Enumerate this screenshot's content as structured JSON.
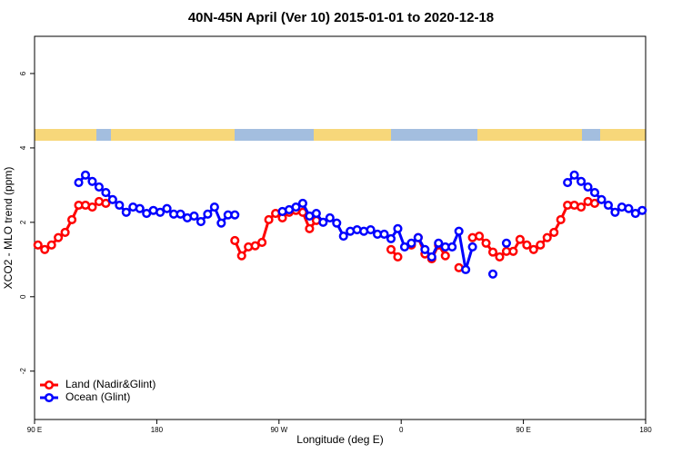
{
  "chart_data": {
    "type": "line",
    "title": "40N-45N April (Ver 10)   2015-01-01 to 2020-12-18",
    "x_label": "Longitude (deg E)",
    "y_label": "XCO2 - MLO trend (ppm)",
    "x": [
      92.5,
      97.5,
      102.5,
      107.5,
      112.5,
      117.5,
      122.5,
      127.5,
      132.5,
      137.5,
      142.5,
      147.5,
      152.5,
      157.5,
      162.5,
      167.5,
      172.5,
      177.5,
      182.5,
      187.5,
      192.5,
      197.5,
      202.5,
      207.5,
      212.5,
      217.5,
      222.5,
      227.5,
      232.5,
      237.5,
      242.5,
      247.5,
      252.5,
      257.5,
      262.5,
      267.5,
      272.5,
      277.5,
      282.5,
      287.5,
      292.5,
      297.5,
      302.5,
      307.5,
      312.5,
      317.5,
      322.5,
      327.5,
      332.5,
      337.5,
      342.5,
      347.5,
      352.5,
      357.5,
      362.5,
      367.5,
      372.5,
      377.5,
      382.5,
      387.5,
      392.5,
      397.5,
      402.5,
      407.5,
      412.5,
      417.5,
      422.5,
      427.5,
      432.5,
      437.5,
      442.5,
      447.5,
      452.5,
      457.5,
      462.5,
      467.5,
      472.5,
      477.5,
      482.5,
      487.5,
      492.5,
      497.5,
      502.5,
      507.5,
      512.5,
      517.5,
      522.5,
      527.5,
      532.5,
      537.5
    ],
    "series": [
      {
        "name": "Land (Nadir&Glint)",
        "color": "#ff0000",
        "values": [
          1.39,
          1.27,
          1.39,
          1.59,
          1.73,
          2.07,
          2.46,
          2.46,
          2.41,
          2.56,
          2.51,
          null,
          null,
          null,
          null,
          null,
          null,
          null,
          null,
          null,
          null,
          null,
          null,
          null,
          null,
          null,
          null,
          null,
          null,
          1.51,
          1.1,
          1.34,
          1.37,
          1.46,
          2.07,
          2.24,
          2.12,
          2.27,
          2.32,
          2.27,
          1.83,
          2.05,
          null,
          null,
          null,
          null,
          null,
          null,
          null,
          null,
          null,
          null,
          1.27,
          1.07,
          null,
          1.39,
          1.59,
          1.15,
          1.02,
          1.39,
          1.1,
          null,
          0.78,
          null,
          1.59,
          1.63,
          1.44,
          1.2,
          1.07,
          1.22,
          1.22,
          1.54,
          1.39,
          1.27,
          1.39,
          1.59,
          1.73,
          2.07,
          2.46,
          2.46,
          2.41,
          2.56,
          2.51,
          null,
          null,
          null,
          null,
          null,
          null,
          null
        ]
      },
      {
        "name": "Ocean (Glint)",
        "color": "#0000ff",
        "values": [
          null,
          null,
          null,
          null,
          null,
          null,
          3.07,
          3.27,
          3.1,
          2.95,
          2.8,
          2.61,
          2.46,
          2.27,
          2.41,
          2.37,
          2.24,
          2.32,
          2.27,
          2.37,
          2.22,
          2.22,
          2.12,
          2.17,
          2.02,
          2.22,
          2.41,
          1.98,
          2.2,
          2.2,
          null,
          null,
          null,
          null,
          null,
          null,
          2.29,
          2.34,
          2.41,
          2.51,
          2.17,
          2.24,
          2.0,
          2.12,
          1.98,
          1.63,
          1.76,
          1.8,
          1.76,
          1.8,
          1.68,
          1.68,
          1.56,
          1.83,
          1.34,
          1.44,
          1.59,
          1.27,
          1.07,
          1.44,
          1.34,
          1.34,
          1.76,
          0.73,
          1.34,
          null,
          null,
          0.61,
          null,
          1.44,
          null,
          null,
          null,
          null,
          null,
          null,
          null,
          null,
          3.07,
          3.27,
          3.1,
          2.95,
          2.8,
          2.61,
          2.46,
          2.27,
          2.41,
          2.37,
          2.24,
          2.32
        ]
      }
    ],
    "xlim": [
      90,
      540
    ],
    "xticks": [
      {
        "value": 90,
        "label": "90 E"
      },
      180,
      {
        "value": 270,
        "label": "90 W"
      },
      {
        "value": 360,
        "label": "0"
      },
      {
        "value": 450,
        "label": "90 E"
      },
      {
        "value": 540,
        "label": "180"
      }
    ],
    "ylim": [
      -3.3,
      7
    ],
    "yticks": [
      -2,
      0,
      2,
      4,
      6
    ],
    "legend": "bottom-left"
  }
}
